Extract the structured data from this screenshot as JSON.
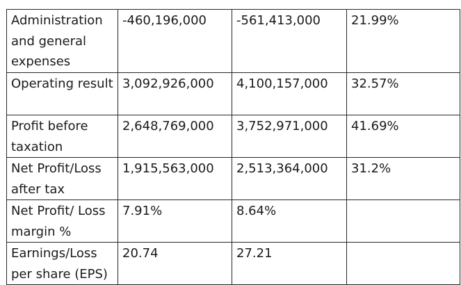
{
  "table": {
    "rows": [
      {
        "label": "Administration and general expenses",
        "col1": "-460,196,000",
        "col2": "-561,413,000",
        "col3": "21.99%"
      },
      {
        "label": "Operating result",
        "col1": "3,092,926,000",
        "col2": "4,100,157,000",
        "col3": "32.57%"
      },
      {
        "label": "Profit before taxation",
        "col1": "2,648,769,000",
        "col2": "3,752,971,000",
        "col3": "41.69%"
      },
      {
        "label": "Net Profit/Loss after tax",
        "col1": "1,915,563,000",
        "col2": "2,513,364,000",
        "col3": "31.2%"
      },
      {
        "label": "Net Profit/ Loss margin %",
        "col1": "7.91%",
        "col2": "8.64%",
        "col3": ""
      },
      {
        "label": "Earnings/Loss per share (EPS)",
        "col1": "20.74",
        "col2": "27.21",
        "col3": ""
      }
    ]
  }
}
